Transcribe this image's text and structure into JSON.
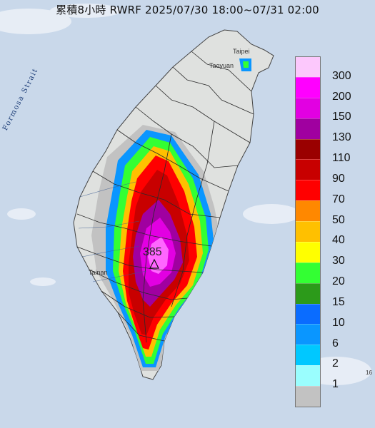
{
  "title": "累積8小時 RWRF 2025/07/30 18:00~07/31 02:00",
  "legend": {
    "labels": [
      "300",
      "200",
      "150",
      "130",
      "110",
      "90",
      "70",
      "50",
      "40",
      "30",
      "20",
      "15",
      "10",
      "6",
      "2",
      "1"
    ],
    "colors": [
      "#fcc8fc",
      "#ff00ff",
      "#e200e2",
      "#a000a0",
      "#9a0000",
      "#c80000",
      "#ff0000",
      "#ff8800",
      "#ffc000",
      "#ffff00",
      "#33ff33",
      "#2c9a1a",
      "#0a6cff",
      "#0a96ff",
      "#00c8ff",
      "#9afefe",
      "#c2c2c2"
    ]
  },
  "max_value": "385",
  "map_labels": {
    "strait": "Formosa Strait",
    "taipei": "Taipei",
    "taoyuan": "Taoyuan",
    "tainan": "Tainan",
    "edge": "16"
  },
  "colors": {
    "sea": "#c9d8ea",
    "land": "#dfe1df",
    "county_line": "#2a2a2a"
  }
}
